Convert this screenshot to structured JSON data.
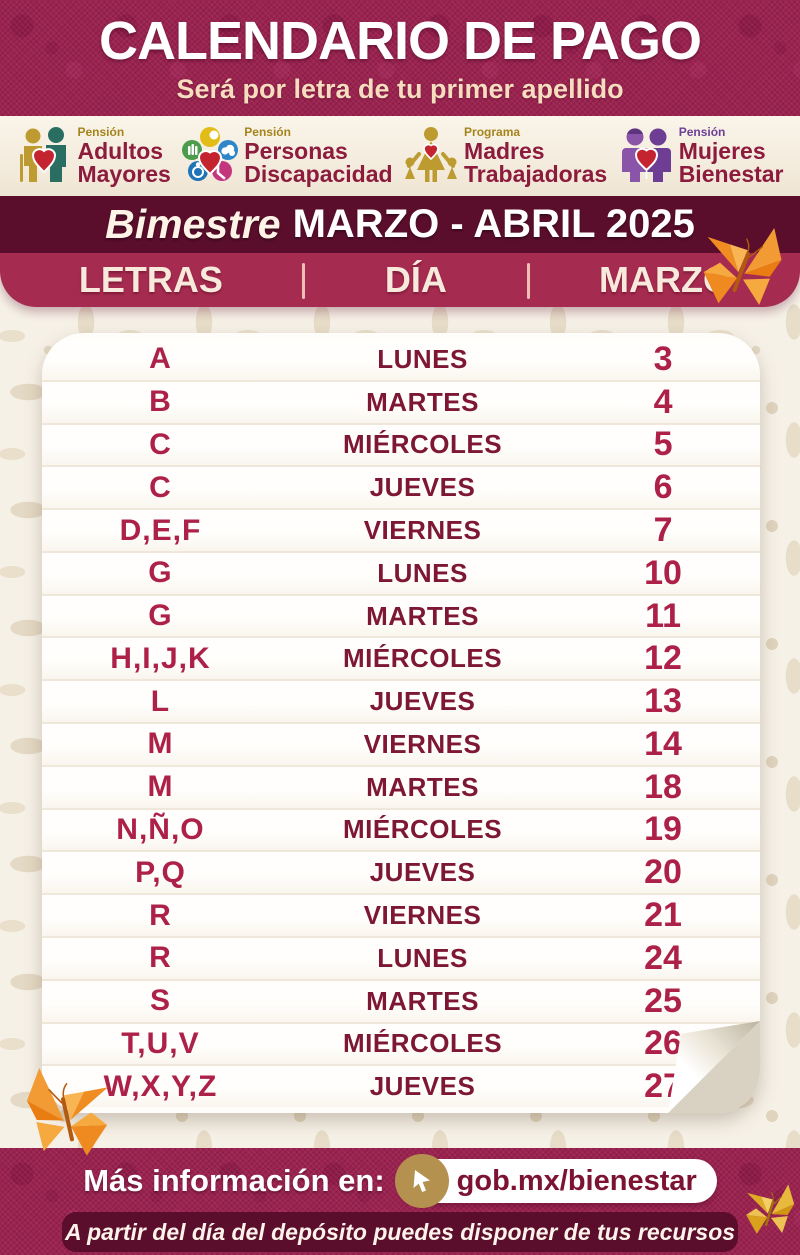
{
  "header": {
    "title": "CALENDARIO DE PAGO",
    "subtitle": "Será por letra de tu primer apellido"
  },
  "programs": [
    {
      "kicker": "Pensión",
      "line1": "Adultos",
      "line2": "Mayores",
      "icon": "elderly-couple-icon"
    },
    {
      "kicker": "Pensión",
      "line1": "Personas",
      "line2": "Discapacidad",
      "icon": "disability-circles-icon"
    },
    {
      "kicker": "Programa",
      "line1": "Madres",
      "line2": "Trabajadoras",
      "icon": "mother-children-icon"
    },
    {
      "kicker": "Pensión",
      "line1": "Mujeres",
      "line2": "Bienestar",
      "icon": "two-women-icon"
    }
  ],
  "bimestre": {
    "prefix": "Bimestre",
    "range": "MARZO - ABRIL 2025"
  },
  "table": {
    "headers": [
      "LETRAS",
      "DÍA",
      "MARZO"
    ],
    "rows": [
      {
        "letters": "A",
        "day": "LUNES",
        "date": "3"
      },
      {
        "letters": "B",
        "day": "MARTES",
        "date": "4"
      },
      {
        "letters": "C",
        "day": "MIÉRCOLES",
        "date": "5"
      },
      {
        "letters": "C",
        "day": "JUEVES",
        "date": "6"
      },
      {
        "letters": "D,E,F",
        "day": "VIERNES",
        "date": "7"
      },
      {
        "letters": "G",
        "day": "LUNES",
        "date": "10"
      },
      {
        "letters": "G",
        "day": "MARTES",
        "date": "11"
      },
      {
        "letters": "H,I,J,K",
        "day": "MIÉRCOLES",
        "date": "12"
      },
      {
        "letters": "L",
        "day": "JUEVES",
        "date": "13"
      },
      {
        "letters": "M",
        "day": "VIERNES",
        "date": "14"
      },
      {
        "letters": "M",
        "day": "MARTES",
        "date": "18"
      },
      {
        "letters": "N,Ñ,O",
        "day": "MIÉRCOLES",
        "date": "19"
      },
      {
        "letters": "P,Q",
        "day": "JUEVES",
        "date": "20"
      },
      {
        "letters": "R",
        "day": "VIERNES",
        "date": "21"
      },
      {
        "letters": "R",
        "day": "LUNES",
        "date": "24"
      },
      {
        "letters": "S",
        "day": "MARTES",
        "date": "25"
      },
      {
        "letters": "T,U,V",
        "day": "MIÉRCOLES",
        "date": "26"
      },
      {
        "letters": "W,X,Y,Z",
        "day": "JUEVES",
        "date": "27"
      }
    ]
  },
  "footer": {
    "info_label": "Más información en:",
    "link": "gob.mx/bienestar",
    "note": "A partir del día del depósito puedes disponer de tus recursos"
  },
  "decor": {
    "butterflies": [
      "orange-butterfly-top-right",
      "orange-butterfly-bottom-left",
      "gold-butterfly-bottom-right"
    ]
  },
  "colors": {
    "texture_magenta": "#9b2350",
    "dark_maroon": "#5a0e2c",
    "crimson_bar": "#a62b50",
    "letters_crimson": "#ad2148",
    "day_maroon": "#7d1734",
    "cream_text": "#f6ddbf",
    "gold_kicker": "#a5841c",
    "purple_kicker": "#6c4096",
    "program_maroon": "#8c1b3d",
    "pill_gold": "#b5914f"
  }
}
